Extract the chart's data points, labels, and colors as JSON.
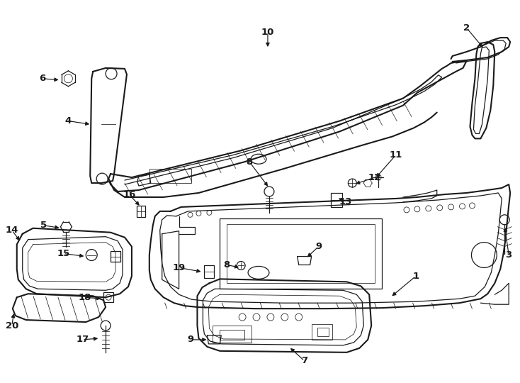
{
  "background_color": "#ffffff",
  "line_color": "#1a1a1a",
  "fig_width": 7.34,
  "fig_height": 5.4,
  "dpi": 100,
  "lw_main": 1.5,
  "lw_thin": 0.9,
  "lw_detail": 0.55,
  "lw_inner": 0.7,
  "label_fontsize": 9.5,
  "label_fontweight": "bold"
}
